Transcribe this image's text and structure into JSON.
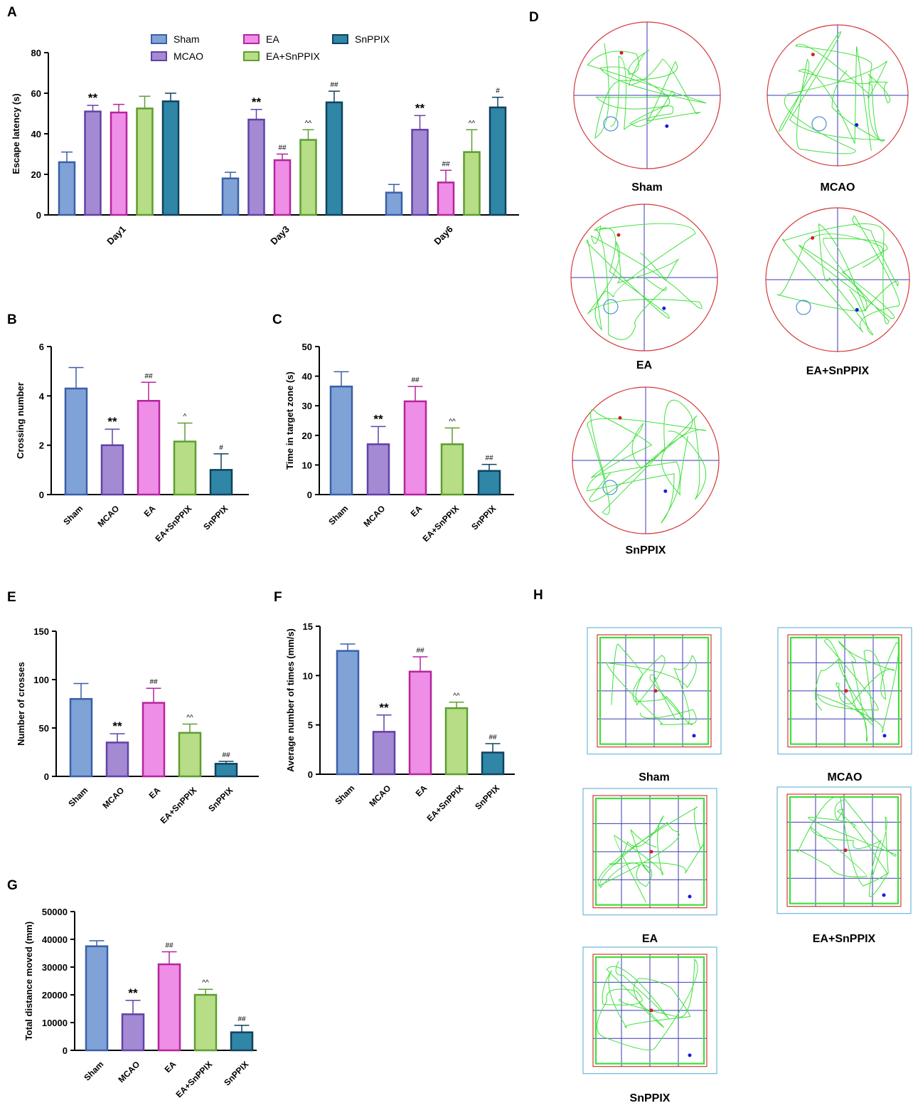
{
  "colors": {
    "Sham": {
      "fill": "#7FA3D6",
      "stroke": "#3B5FA8"
    },
    "MCAO": {
      "fill": "#A48AD3",
      "stroke": "#6042A8"
    },
    "EA": {
      "fill": "#EE8EE6",
      "stroke": "#B5249E"
    },
    "EA+SnPPIX": {
      "fill": "#B7DD86",
      "stroke": "#5D9E30"
    },
    "SnPPIX": {
      "fill": "#2F86A6",
      "stroke": "#10425E"
    }
  },
  "chart_data": [
    {
      "panel": "A",
      "type": "bar",
      "categories": [
        "Day1",
        "Day3",
        "Day6"
      ],
      "ylabel": "Escape latency (s)",
      "ylim": [
        0,
        80
      ],
      "yticks": [
        "0",
        "20",
        "40",
        "60",
        "80"
      ],
      "legend": "top",
      "series": [
        {
          "name": "Sham",
          "values": [
            26,
            18,
            11
          ],
          "errors": [
            5,
            3,
            4
          ],
          "marks": [
            "",
            "",
            ""
          ]
        },
        {
          "name": "MCAO",
          "values": [
            51,
            47,
            42
          ],
          "errors": [
            3,
            5,
            7
          ],
          "marks": [
            "**",
            "**",
            "**"
          ]
        },
        {
          "name": "EA",
          "values": [
            50.5,
            27,
            16
          ],
          "errors": [
            4,
            3,
            6
          ],
          "marks": [
            "",
            "##",
            "##"
          ]
        },
        {
          "name": "EA+SnPPIX",
          "values": [
            52.5,
            37,
            31
          ],
          "errors": [
            6,
            5,
            11
          ],
          "marks": [
            "",
            "^^",
            "^^"
          ]
        },
        {
          "name": "SnPPIX",
          "values": [
            56,
            55.5,
            53
          ],
          "errors": [
            4,
            5.5,
            5
          ],
          "marks": [
            "",
            "##",
            "#"
          ]
        }
      ]
    },
    {
      "panel": "B",
      "type": "bar",
      "categories": [
        "Sham",
        "MCAO",
        "EA",
        "EA+SnPPIX",
        "SnPPIX"
      ],
      "values": [
        4.3,
        2.0,
        3.8,
        2.15,
        1.0
      ],
      "errors": [
        0.85,
        0.65,
        0.75,
        0.75,
        0.65
      ],
      "marks": [
        "",
        "**",
        "##",
        "^",
        "#"
      ],
      "ylabel": "Crossing number",
      "ylim": [
        0,
        6
      ],
      "yticks": [
        "0",
        "2",
        "4",
        "6"
      ]
    },
    {
      "panel": "C",
      "type": "bar",
      "categories": [
        "Sham",
        "MCAO",
        "EA",
        "EA+SnPPIX",
        "SnPPIX"
      ],
      "values": [
        36.5,
        17,
        31.5,
        17,
        8
      ],
      "errors": [
        5,
        6,
        5,
        5.5,
        2.2
      ],
      "marks": [
        "",
        "**",
        "##",
        "^^",
        "##"
      ],
      "ylabel": "Time in target zone (s)",
      "ylim": [
        0,
        50
      ],
      "yticks": [
        "0",
        "10",
        "20",
        "30",
        "40",
        "50"
      ]
    },
    {
      "panel": "E",
      "type": "bar",
      "categories": [
        "Sham",
        "MCAO",
        "EA",
        "EA+SnPPIX",
        "SnPPIX"
      ],
      "values": [
        80,
        35,
        76,
        45,
        13
      ],
      "errors": [
        16,
        9,
        15,
        9,
        2.5
      ],
      "marks": [
        "",
        "**",
        "##",
        "^^",
        "##"
      ],
      "ylabel": "Number of crosses",
      "ylim": [
        0,
        150
      ],
      "yticks": [
        "0",
        "50",
        "100",
        "150"
      ]
    },
    {
      "panel": "F",
      "type": "bar",
      "categories": [
        "Sham",
        "MCAO",
        "EA",
        "EA+SnPPIX",
        "SnPPIX"
      ],
      "values": [
        12.5,
        4.3,
        10.4,
        6.7,
        2.2
      ],
      "errors": [
        0.7,
        1.7,
        1.5,
        0.6,
        0.9
      ],
      "marks": [
        "",
        "**",
        "##",
        "^^",
        "##"
      ],
      "ylabel": "Average number of times (mm/s)",
      "ylim": [
        0,
        15
      ],
      "yticks": [
        "0",
        "5",
        "10",
        "15"
      ]
    },
    {
      "panel": "G",
      "type": "bar",
      "categories": [
        "Sham",
        "MCAO",
        "EA",
        "EA+SnPPIX",
        "SnPPIX"
      ],
      "values": [
        37500,
        13000,
        31000,
        20000,
        6500
      ],
      "errors": [
        2000,
        5000,
        4500,
        2000,
        2500
      ],
      "marks": [
        "",
        "**",
        "##",
        "^^",
        "##"
      ],
      "ylabel": "Total distance moved (mm)",
      "ylim": [
        0,
        50000
      ],
      "yticks": [
        "0",
        "10000",
        "20000",
        "30000",
        "40000",
        "50000"
      ]
    }
  ],
  "track_panels": {
    "D": {
      "letter": "D",
      "shape": "circle",
      "labels": [
        "Sham",
        "MCAO",
        "EA",
        "EA+SnPPIX",
        "SnPPIX"
      ]
    },
    "H": {
      "letter": "H",
      "shape": "square",
      "labels": [
        "Sham",
        "MCAO",
        "EA",
        "EA+SnPPIX",
        "SnPPIX"
      ]
    }
  }
}
